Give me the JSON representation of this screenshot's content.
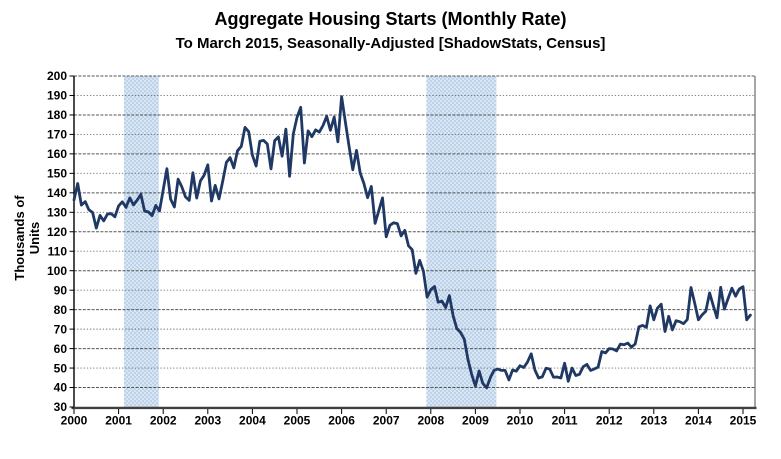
{
  "chart_data": {
    "type": "line",
    "title": "Aggregate Housing Starts (Monthly Rate)",
    "subtitle": "To March 2015, Seasonally-Adjusted [ShadowStats, Census]",
    "ylabel": "Thousands of Units",
    "xlabel": "",
    "legend": "none",
    "grid": "horizontal-dashed",
    "ylim": [
      30,
      200
    ],
    "y_ticks": [
      200,
      190,
      180,
      170,
      160,
      150,
      140,
      130,
      120,
      110,
      100,
      90,
      80,
      70,
      60,
      50,
      40,
      30
    ],
    "x_tick_labels": [
      "2000",
      "2001",
      "2002",
      "2003",
      "2004",
      "2005",
      "2006",
      "2007",
      "2008",
      "2009",
      "2010",
      "2011",
      "2012",
      "2013",
      "2014",
      "2015"
    ],
    "x_range": [
      2000,
      2015.27
    ],
    "frequency": "monthly",
    "start_year": 2000,
    "start_month": 1,
    "end_label": "March 2015",
    "series_name": "Aggregate housing starts, monthly rate (thousands of units)",
    "values": [
      136.3,
      144.8,
      133.7,
      135.5,
      131.3,
      129.9,
      121.9,
      128.4,
      125.6,
      129.1,
      129.3,
      127.7,
      133.3,
      135.4,
      132.5,
      137.4,
      133.8,
      136.3,
      139.2,
      130.6,
      130.2,
      128.3,
      133.5,
      130.7,
      141.5,
      152.4,
      136.8,
      132.7,
      147.0,
      143.1,
      137.9,
      136.1,
      150.3,
      137.3,
      146.1,
      149.0,
      154.4,
      135.8,
      143.8,
      136.9,
      145.9,
      155.6,
      158.1,
      152.8,
      161.6,
      163.9,
      173.6,
      171.4,
      159.3,
      153.8,
      166.5,
      166.9,
      165.1,
      152.3,
      166.8,
      168.7,
      158.8,
      172.7,
      148.5,
      170.2,
      178.7,
      183.9,
      155.3,
      171.8,
      168.8,
      172.3,
      171.2,
      174.6,
      179.3,
      172.1,
      178.9,
      166.2,
      189.4,
      176.6,
      164.1,
      151.8,
      161.8,
      150.2,
      144.8,
      137.5,
      143.3,
      124.3,
      130.8,
      137.4,
      117.4,
      123.3,
      124.6,
      124.2,
      117.9,
      120.7,
      112.8,
      110.8,
      98.6,
      105.3,
      99.8,
      86.4,
      90.3,
      91.9,
      83.8,
      84.4,
      81.1,
      87.2,
      76.9,
      70.3,
      68.3,
      64.8,
      54.3,
      46.7,
      40.8,
      48.5,
      42.1,
      39.8,
      45.0,
      48.8,
      49.5,
      48.8,
      48.8,
      43.9,
      49.0,
      48.4,
      51.2,
      50.3,
      53.0,
      57.3,
      49.0,
      44.9,
      45.5,
      49.9,
      49.5,
      45.3,
      45.4,
      44.9,
      52.5,
      43.2,
      50.0,
      46.2,
      46.8,
      50.7,
      51.9,
      48.8,
      49.5,
      50.5,
      58.5,
      57.8,
      60.0,
      59.8,
      58.8,
      62.3,
      62.0,
      62.8,
      60.7,
      62.4,
      71.2,
      71.9,
      70.9,
      81.9,
      74.8,
      80.8,
      82.8,
      68.8,
      76.6,
      69.6,
      74.3,
      73.8,
      72.8,
      74.9,
      91.4,
      83.3,
      74.8,
      77.3,
      79.2,
      88.6,
      82.0,
      75.8,
      91.5,
      80.3,
      85.7,
      91.0,
      86.9,
      90.6,
      91.8,
      74.8,
      77.2
    ],
    "recession_bands": [
      {
        "from": 2001.12,
        "to": 2001.9
      },
      {
        "from": 2007.9,
        "to": 2009.47
      }
    ],
    "colors": {
      "line": "#1F3864",
      "band": "#BDD3EA",
      "band_dot": "#FFFFFF",
      "grid": "#4D4D4D",
      "axis": "#000000",
      "x_axis": "#404040",
      "border": "#808080",
      "text": "#000000"
    }
  }
}
